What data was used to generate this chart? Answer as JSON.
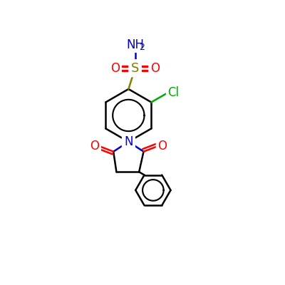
{
  "bg_color": "#ffffff",
  "atom_colors": {
    "C": "#000000",
    "N": "#0000cd",
    "O": "#ff0000",
    "S": "#808000",
    "Cl": "#00aa00",
    "H": "#000000"
  },
  "bond_color": "#000000",
  "bond_width": 1.8,
  "font_size_atom": 12,
  "font_size_sub": 9
}
